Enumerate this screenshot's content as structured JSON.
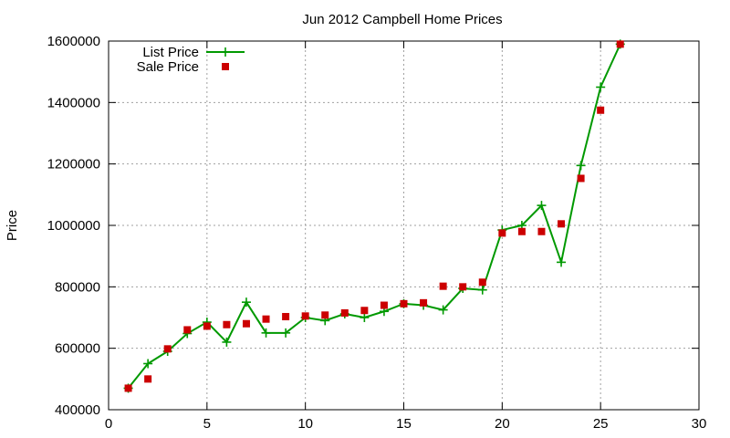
{
  "chart_data": {
    "type": "line",
    "title": "Jun 2012 Campbell Home Prices",
    "xlabel": "",
    "ylabel": "Price",
    "xlim": [
      0,
      30
    ],
    "ylim": [
      400000,
      1600000
    ],
    "xticks": [
      0,
      5,
      10,
      15,
      20,
      25,
      30
    ],
    "yticks": [
      400000,
      600000,
      800000,
      1000000,
      1200000,
      1400000,
      1600000
    ],
    "grid": true,
    "legend_position": "top-left",
    "series": [
      {
        "name": "List Price",
        "style": "line-plus",
        "color": "#009900",
        "x": [
          1,
          2,
          3,
          4,
          5,
          6,
          7,
          8,
          9,
          10,
          11,
          12,
          13,
          14,
          15,
          16,
          17,
          18,
          19,
          20,
          21,
          22,
          23,
          24,
          25,
          26
        ],
        "y": [
          470000,
          550000,
          590000,
          648000,
          685000,
          620000,
          750000,
          650000,
          650000,
          700000,
          690000,
          712000,
          700000,
          720000,
          745000,
          740000,
          725000,
          795000,
          790000,
          985000,
          1000000,
          1065000,
          880000,
          1195000,
          1450000,
          1590000
        ]
      },
      {
        "name": "Sale Price",
        "style": "square-points",
        "color": "#cc0000",
        "x": [
          1,
          2,
          3,
          4,
          5,
          6,
          7,
          8,
          9,
          10,
          11,
          12,
          13,
          14,
          15,
          16,
          17,
          18,
          19,
          20,
          21,
          22,
          23,
          24,
          25,
          26
        ],
        "y": [
          470000,
          500000,
          598000,
          660000,
          672000,
          677000,
          680000,
          695000,
          703000,
          705000,
          708000,
          715000,
          723000,
          740000,
          745000,
          748000,
          802000,
          800000,
          815000,
          975000,
          980000,
          980000,
          1005000,
          1153000,
          1375000,
          1590000
        ]
      }
    ]
  }
}
